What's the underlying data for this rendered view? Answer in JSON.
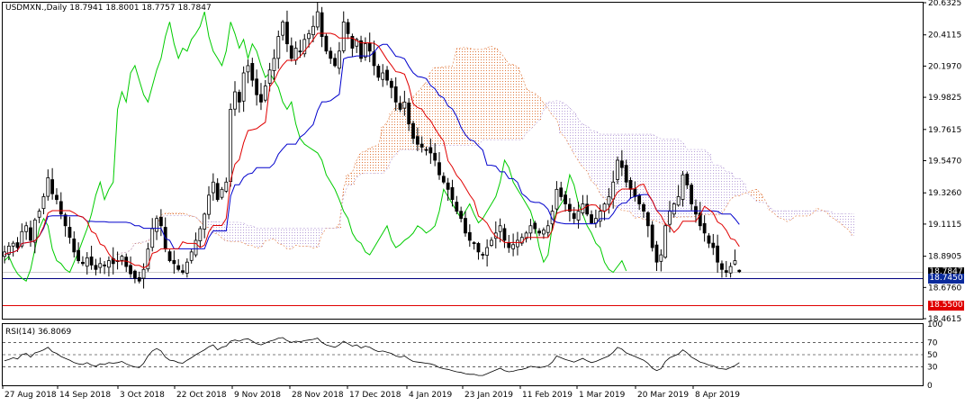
{
  "header": {
    "title_line": "USDMXN.,Daily  18.7941 18.8001 18.7757 18.7847"
  },
  "rsi_panel": {
    "label": "RSI(14) 36.8069",
    "levels": [
      100,
      70,
      50,
      30,
      0
    ],
    "tick_labels": [
      "100",
      "70",
      "50",
      "30",
      "0"
    ]
  },
  "price_axis": {
    "ticks": [
      20.6325,
      20.4115,
      20.197,
      19.9825,
      19.7615,
      19.547,
      19.326,
      19.1115,
      18.8905,
      18.676,
      18.4615
    ],
    "tick_labels": [
      "20.6325",
      "20.4115",
      "20.1970",
      "19.9825",
      "19.7615",
      "19.5470",
      "19.3260",
      "19.1115",
      "18.8905",
      "18.6760",
      "18.4615"
    ],
    "current_price_label": "18.7847",
    "hline_1_label": "18.7450",
    "hline_2_label": "18.5500"
  },
  "colors": {
    "candle": "#000000",
    "tenkan": "#e00000",
    "kijun": "#0000cc",
    "chikou": "#00cc00",
    "cloud_bull": "#e0783c",
    "cloud_bear": "#b8a0d8",
    "hline_blue": "#000080",
    "hline_red": "#e00000",
    "tag_blue": "#0a2a9c",
    "tag_red": "#e00000",
    "grid": "#000000"
  },
  "chart_data": [
    {
      "type": "candlestick",
      "symbol": "USDMXN.",
      "timeframe": "Daily",
      "ohlc_last": {
        "open": 18.7941,
        "high": 18.8001,
        "low": 18.7757,
        "close": 18.7847
      },
      "x_tick_labels": [
        "27 Aug 2018",
        "14 Sep 2018",
        "3 Oct 2018",
        "22 Oct 2018",
        "9 Nov 2018",
        "28 Nov 2018",
        "17 Dec 2018",
        "4 Jan 2019",
        "23 Jan 2019",
        "11 Feb 2019",
        "1 Mar 2019",
        "20 Mar 2019",
        "8 Apr 2019"
      ],
      "ylim": [
        18.4615,
        20.6325
      ],
      "indicator": "Ichimoku",
      "close_approx": [
        18.92,
        18.96,
        18.98,
        18.95,
        19.06,
        19.1,
        19.0,
        19.14,
        19.2,
        19.3,
        19.43,
        19.32,
        19.28,
        19.18,
        19.1,
        19.02,
        18.92,
        18.86,
        18.84,
        18.88,
        18.83,
        18.8,
        18.84,
        18.83,
        18.86,
        18.84,
        18.86,
        18.89,
        18.82,
        18.77,
        18.74,
        18.72,
        18.8,
        18.94,
        19.08,
        19.15,
        19.1,
        18.94,
        18.86,
        18.84,
        18.8,
        18.78,
        18.85,
        18.92,
        19.0,
        19.08,
        19.18,
        19.31,
        19.4,
        19.28,
        19.35,
        19.4,
        19.9,
        20.02,
        19.95,
        20.15,
        20.2,
        20.1,
        20.0,
        19.95,
        20.06,
        20.17,
        20.25,
        20.4,
        20.5,
        20.35,
        20.25,
        20.32,
        20.3,
        20.38,
        20.42,
        20.47,
        20.57,
        20.4,
        20.3,
        20.25,
        20.2,
        20.3,
        20.5,
        20.42,
        20.32,
        20.38,
        20.25,
        20.35,
        20.3,
        20.2,
        20.12,
        20.15,
        20.1,
        20.05,
        19.95,
        19.9,
        19.95,
        19.8,
        19.7,
        19.66,
        19.64,
        19.62,
        19.6,
        19.55,
        19.45,
        19.4,
        19.35,
        19.28,
        19.2,
        19.15,
        19.05,
        19.0,
        18.98,
        18.92,
        18.9,
        18.95,
        19.0,
        19.05,
        19.1,
        19.0,
        18.95,
        18.97,
        19.0,
        19.02,
        19.05,
        19.1,
        19.08,
        19.05,
        19.07,
        19.1,
        19.2,
        19.35,
        19.3,
        19.25,
        19.2,
        19.15,
        19.2,
        19.25,
        19.18,
        19.12,
        19.15,
        19.2,
        19.25,
        19.3,
        19.4,
        19.55,
        19.5,
        19.4,
        19.35,
        19.3,
        19.25,
        19.2,
        19.1,
        18.95,
        18.85,
        18.9,
        19.1,
        19.2,
        19.25,
        19.3,
        19.45,
        19.38,
        19.25,
        19.18,
        19.1,
        19.05,
        18.98,
        18.95,
        18.85,
        18.8,
        18.78,
        18.82,
        18.86,
        18.79
      ],
      "rsi_approx": [
        40,
        42,
        45,
        43,
        50,
        52,
        46,
        53,
        55,
        58,
        62,
        55,
        52,
        47,
        44,
        41,
        37,
        35,
        34,
        37,
        33,
        31,
        35,
        34,
        37,
        36,
        37,
        39,
        35,
        32,
        30,
        29,
        36,
        48,
        56,
        60,
        56,
        46,
        41,
        40,
        37,
        36,
        41,
        45,
        50,
        54,
        58,
        63,
        66,
        58,
        62,
        64,
        72,
        74,
        72,
        75,
        76,
        72,
        68,
        66,
        69,
        72,
        74,
        77,
        78,
        73,
        70,
        72,
        71,
        73,
        74,
        75,
        77,
        70,
        66,
        64,
        62,
        66,
        72,
        68,
        64,
        66,
        61,
        64,
        62,
        58,
        55,
        56,
        54,
        52,
        48,
        46,
        48,
        43,
        39,
        38,
        37,
        36,
        35,
        33,
        29,
        27,
        26,
        24,
        22,
        21,
        19,
        18,
        18,
        16,
        16,
        19,
        22,
        25,
        28,
        24,
        22,
        23,
        25,
        26,
        28,
        31,
        30,
        29,
        30,
        32,
        38,
        48,
        45,
        42,
        40,
        38,
        41,
        44,
        40,
        37,
        39,
        42,
        45,
        48,
        54,
        62,
        59,
        53,
        50,
        47,
        44,
        41,
        36,
        28,
        24,
        27,
        39,
        45,
        48,
        51,
        58,
        53,
        46,
        42,
        38,
        36,
        33,
        32,
        28,
        27,
        26,
        29,
        32,
        37
      ]
    }
  ]
}
